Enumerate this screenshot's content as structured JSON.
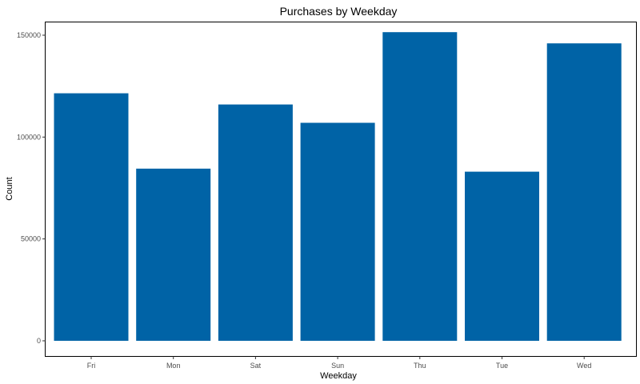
{
  "chart_data": {
    "type": "bar",
    "title": "Purchases by Weekday",
    "xlabel": "Weekday",
    "ylabel": "Count",
    "categories": [
      "Fri",
      "Mon",
      "Sat",
      "Sun",
      "Thu",
      "Tue",
      "Wed"
    ],
    "values": [
      121500,
      84500,
      116000,
      107000,
      151500,
      83000,
      146000
    ],
    "ylim": [
      0,
      152000
    ],
    "yticks": [
      0,
      50000,
      100000,
      150000
    ],
    "ytick_labels": [
      "0",
      "50000",
      "100000",
      "150000"
    ],
    "grid": false,
    "bar_color": "#0063A6",
    "legend": "none"
  }
}
